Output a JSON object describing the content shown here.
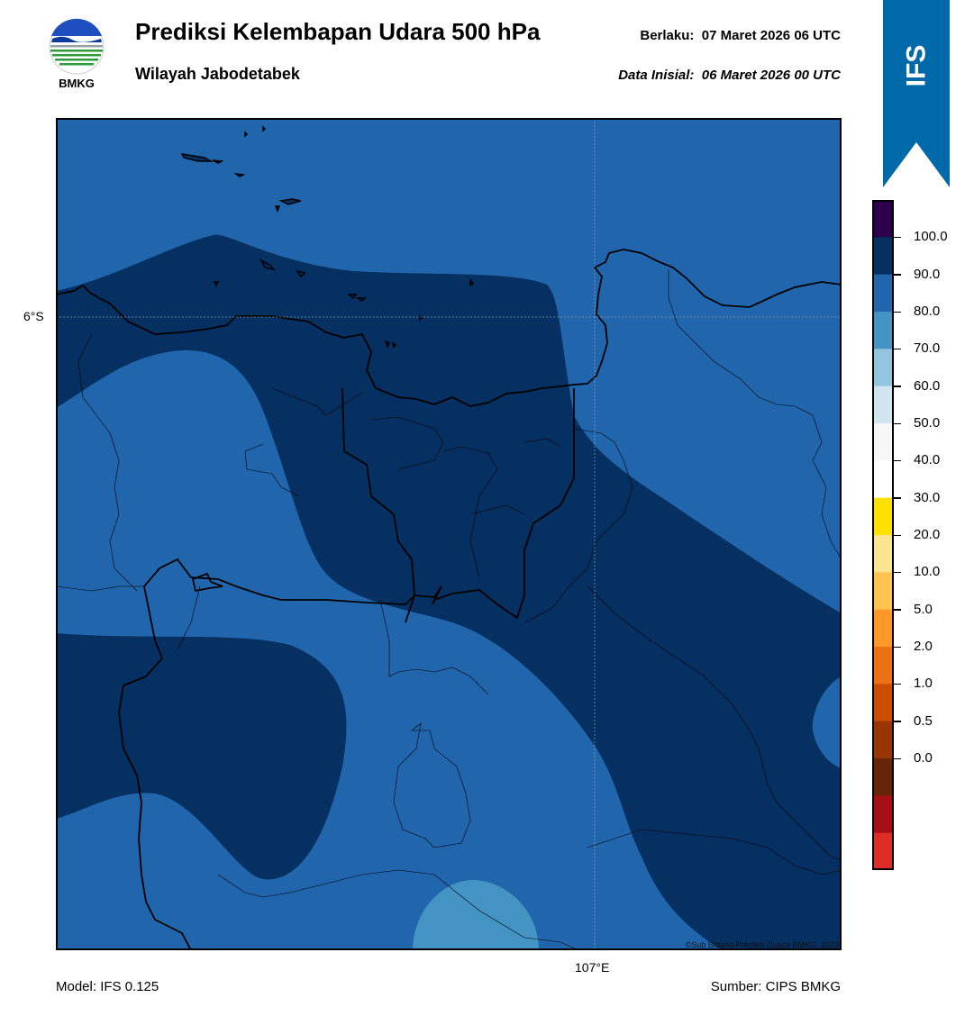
{
  "header": {
    "title": "Prediksi Kelembapan Udara 500 hPa",
    "subtitle": "Wilayah Jabodetabek",
    "valid_label": "Berlaku:",
    "valid_time": "07 Maret 2026 06 UTC",
    "init_label": "Data Inisial:",
    "init_time": "06 Maret 2026 00 UTC"
  },
  "logo": {
    "text": "BMKG",
    "icon": "bmkg-logo-icon"
  },
  "ribbon": {
    "text": "IFS",
    "color": "#0069AA"
  },
  "map": {
    "lat_label": "6°S",
    "lon_label": "107°E",
    "credit": "©Sub Bidang Prediksi Cuaca BMKG, 2023",
    "colors": {
      "band_80_90": "#2166AC",
      "band_90_100": "#053061",
      "band_70_80": "#4393C3"
    }
  },
  "colorbar": {
    "ticks": [
      "100.0",
      "90.0",
      "80.0",
      "70.0",
      "60.0",
      "50.0",
      "40.0",
      "30.0",
      "20.0",
      "10.0",
      "5.0",
      "2.0",
      "1.0",
      "0.5",
      "0.0"
    ],
    "colors": [
      "#2d004b",
      "#053061",
      "#2166ac",
      "#4393c3",
      "#92c5de",
      "#d1e5f0",
      "#f7f7f7",
      "#ffffff",
      "#ffe100",
      "#fee391",
      "#fec44f",
      "#fe9929",
      "#ec7014",
      "#cc4c02",
      "#993404",
      "#662506",
      "#a50f15",
      "#de2d26"
    ]
  },
  "footer": {
    "model": "Model: IFS 0.125",
    "source": "Sumber: CIPS BMKG"
  }
}
